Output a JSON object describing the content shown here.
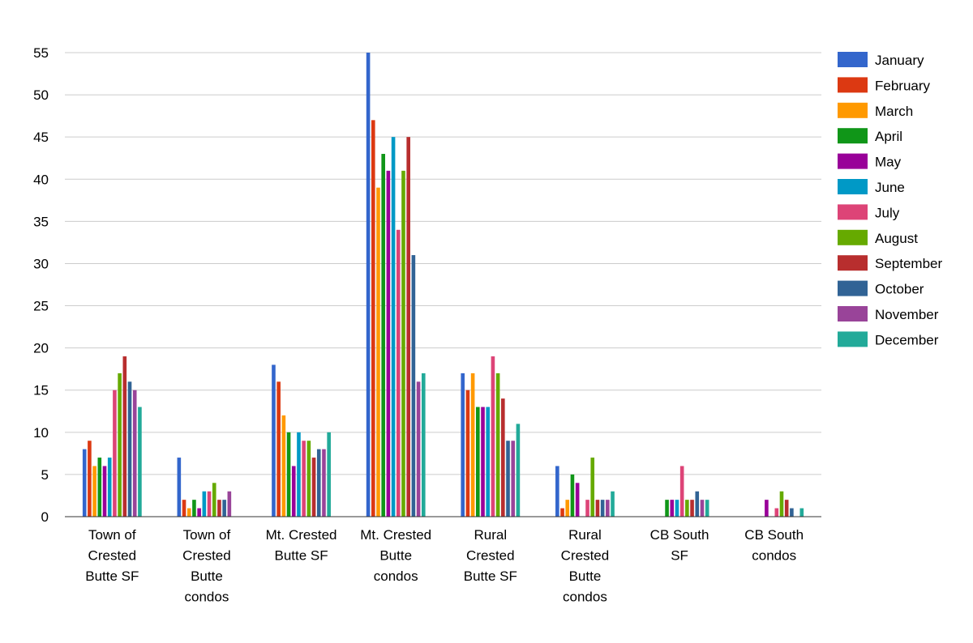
{
  "chart_data": {
    "type": "bar",
    "title": "",
    "xlabel": "",
    "ylabel": "",
    "ylim": [
      0,
      55
    ],
    "yticks": [
      0,
      5,
      10,
      15,
      20,
      25,
      30,
      35,
      40,
      45,
      50,
      55
    ],
    "grid": true,
    "legend_position": "right",
    "categories": [
      [
        "Town of",
        "Crested",
        "Butte SF"
      ],
      [
        "Town of",
        "Crested",
        "Butte",
        "condos"
      ],
      [
        "Mt. Crested",
        "Butte SF"
      ],
      [
        "Mt. Crested",
        "Butte",
        "condos"
      ],
      [
        "Rural",
        "Crested",
        "Butte SF"
      ],
      [
        "Rural",
        "Crested",
        "Butte",
        "condos"
      ],
      [
        "CB South",
        "SF"
      ],
      [
        "CB South",
        "condos"
      ]
    ],
    "series": [
      {
        "name": "January",
        "color": "#3366cc",
        "values": [
          8,
          7,
          18,
          55,
          17,
          6,
          0,
          0
        ]
      },
      {
        "name": "February",
        "color": "#dc3912",
        "values": [
          9,
          2,
          16,
          47,
          15,
          1,
          0,
          0
        ]
      },
      {
        "name": "March",
        "color": "#ff9900",
        "values": [
          6,
          1,
          12,
          39,
          17,
          2,
          0,
          0
        ]
      },
      {
        "name": "April",
        "color": "#109618",
        "values": [
          7,
          2,
          10,
          43,
          13,
          5,
          2,
          0
        ]
      },
      {
        "name": "May",
        "color": "#990099",
        "values": [
          6,
          1,
          6,
          41,
          13,
          4,
          2,
          2
        ]
      },
      {
        "name": "June",
        "color": "#0099c6",
        "values": [
          7,
          3,
          10,
          45,
          13,
          0,
          2,
          0
        ]
      },
      {
        "name": "July",
        "color": "#dd4477",
        "values": [
          15,
          3,
          9,
          34,
          19,
          2,
          6,
          1
        ]
      },
      {
        "name": "August",
        "color": "#66aa00",
        "values": [
          17,
          4,
          9,
          41,
          17,
          7,
          2,
          3
        ]
      },
      {
        "name": "September",
        "color": "#b82e2e",
        "values": [
          19,
          2,
          7,
          45,
          14,
          2,
          2,
          2
        ]
      },
      {
        "name": "October",
        "color": "#316395",
        "values": [
          16,
          2,
          8,
          31,
          9,
          2,
          3,
          1
        ]
      },
      {
        "name": "November",
        "color": "#994499",
        "values": [
          15,
          3,
          8,
          16,
          9,
          2,
          2,
          0
        ]
      },
      {
        "name": "December",
        "color": "#22aa99",
        "values": [
          13,
          0,
          10,
          17,
          11,
          3,
          2,
          1
        ]
      }
    ]
  }
}
